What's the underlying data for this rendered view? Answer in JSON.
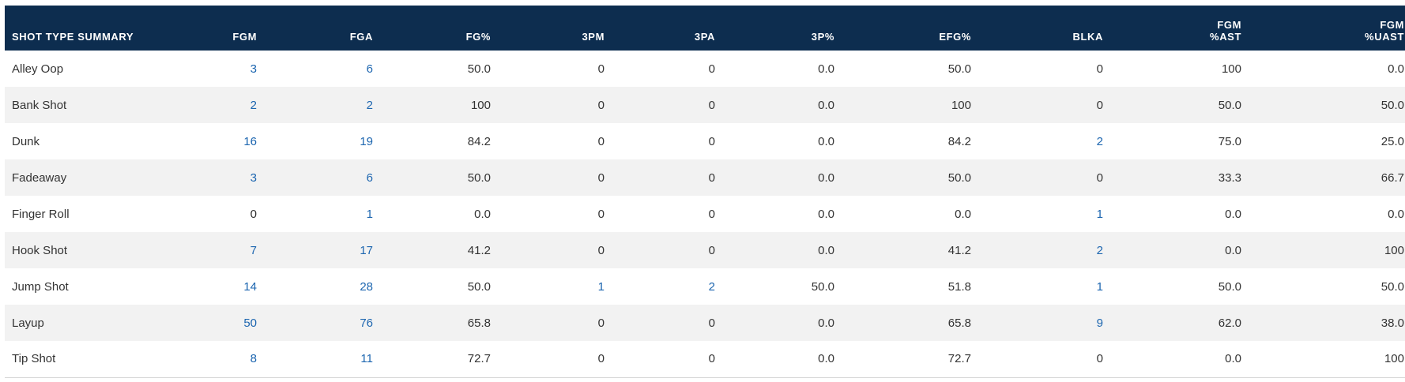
{
  "table": {
    "headers": [
      "SHOT TYPE SUMMARY",
      "FGM",
      "FGA",
      "FG%",
      "3PM",
      "3PA",
      "3P%",
      "EFG%",
      "BLKA",
      "FGM\n%AST",
      "FGM\n%UAST"
    ],
    "rows": [
      [
        "Alley Oop",
        "3",
        "6",
        "50.0",
        "0",
        "0",
        "0.0",
        "50.0",
        "0",
        "100",
        "0.0"
      ],
      [
        "Bank Shot",
        "2",
        "2",
        "100",
        "0",
        "0",
        "0.0",
        "100",
        "0",
        "50.0",
        "50.0"
      ],
      [
        "Dunk",
        "16",
        "19",
        "84.2",
        "0",
        "0",
        "0.0",
        "84.2",
        "2",
        "75.0",
        "25.0"
      ],
      [
        "Fadeaway",
        "3",
        "6",
        "50.0",
        "0",
        "0",
        "0.0",
        "50.0",
        "0",
        "33.3",
        "66.7"
      ],
      [
        "Finger Roll",
        "0",
        "1",
        "0.0",
        "0",
        "0",
        "0.0",
        "0.0",
        "1",
        "0.0",
        "0.0"
      ],
      [
        "Hook Shot",
        "7",
        "17",
        "41.2",
        "0",
        "0",
        "0.0",
        "41.2",
        "2",
        "0.0",
        "100"
      ],
      [
        "Jump Shot",
        "14",
        "28",
        "50.0",
        "1",
        "2",
        "50.0",
        "51.8",
        "1",
        "50.0",
        "50.0"
      ],
      [
        "Layup",
        "50",
        "76",
        "65.8",
        "0",
        "0",
        "0.0",
        "65.8",
        "9",
        "62.0",
        "38.0"
      ],
      [
        "Tip Shot",
        "8",
        "11",
        "72.7",
        "0",
        "0",
        "0.0",
        "72.7",
        "0",
        "0.0",
        "100"
      ]
    ]
  },
  "colors": {
    "header_bg": "#0d2d4f",
    "link": "#1d66b0",
    "text": "#333333",
    "stripe": "#f2f2f2"
  }
}
